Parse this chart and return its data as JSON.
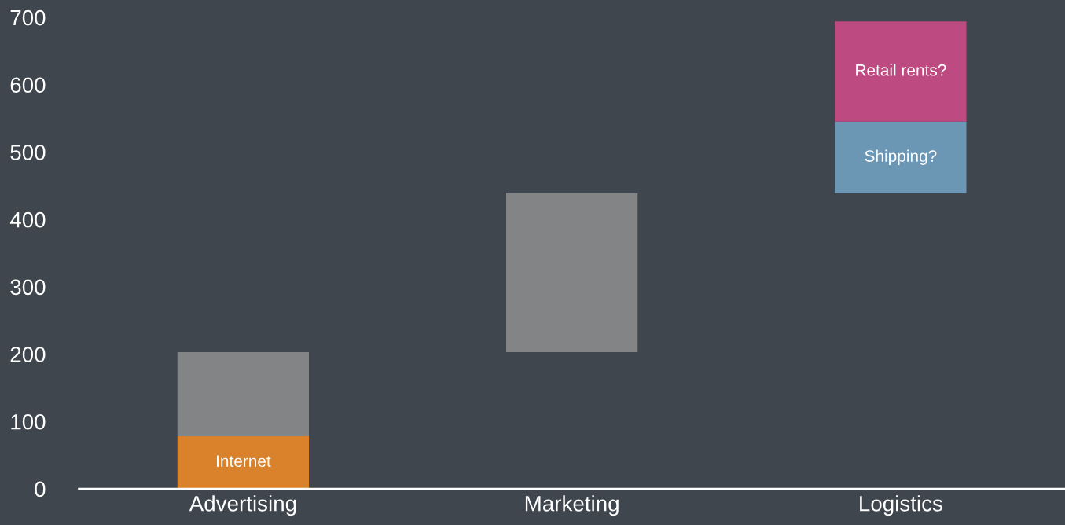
{
  "chart_data": {
    "type": "bar",
    "categories": [
      "Advertising",
      "Marketing",
      "Logistics"
    ],
    "series": [
      {
        "name": "Internet",
        "color": "#d9822b",
        "values": [
          78,
          null,
          null
        ],
        "base": [
          0,
          null,
          null
        ]
      },
      {
        "color": "#838485",
        "values": [
          125,
          236,
          null
        ],
        "base": [
          78,
          203,
          null
        ]
      },
      {
        "name": "Shipping?",
        "color": "#6b96b4",
        "values": [
          null,
          null,
          106
        ],
        "base": [
          null,
          null,
          439
        ]
      },
      {
        "name": "Retail rents?",
        "color": "#bd4a80",
        "values": [
          null,
          null,
          149
        ],
        "base": [
          null,
          null,
          545
        ]
      }
    ],
    "ylim": [
      0,
      700
    ],
    "yticks": [
      0,
      100,
      200,
      300,
      400,
      500,
      600,
      700
    ],
    "grid": false,
    "legend": false
  }
}
